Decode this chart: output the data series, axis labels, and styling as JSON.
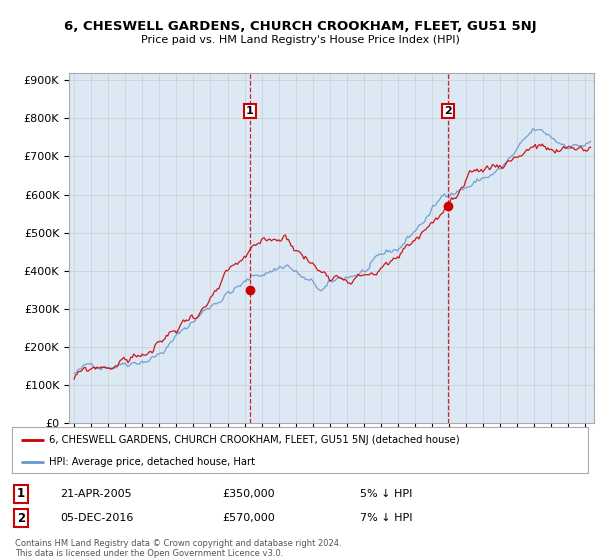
{
  "title": "6, CHESWELL GARDENS, CHURCH CROOKHAM, FLEET, GU51 5NJ",
  "subtitle": "Price paid vs. HM Land Registry's House Price Index (HPI)",
  "ylabel_ticks": [
    "£0",
    "£100K",
    "£200K",
    "£300K",
    "£400K",
    "£500K",
    "£600K",
    "£700K",
    "£800K",
    "£900K"
  ],
  "ytick_values": [
    0,
    100000,
    200000,
    300000,
    400000,
    500000,
    600000,
    700000,
    800000,
    900000
  ],
  "ylim": [
    0,
    920000
  ],
  "xlim_start": 1994.7,
  "xlim_end": 2025.5,
  "xtick_years": [
    1995,
    1996,
    1997,
    1998,
    1999,
    2000,
    2001,
    2002,
    2003,
    2004,
    2005,
    2006,
    2007,
    2008,
    2009,
    2010,
    2011,
    2012,
    2013,
    2014,
    2015,
    2016,
    2017,
    2018,
    2019,
    2020,
    2021,
    2022,
    2023,
    2024,
    2025
  ],
  "line1_color": "#cc0000",
  "line2_color": "#6699cc",
  "marker_color": "#cc0000",
  "vline_color": "#cc0000",
  "sale1_year": 2005.3,
  "sale1_price": 350000,
  "sale2_year": 2016.92,
  "sale2_price": 570000,
  "label1_price": 820000,
  "label2_price": 820000,
  "legend_line1": "6, CHESWELL GARDENS, CHURCH CROOKHAM, FLEET, GU51 5NJ (detached house)",
  "legend_line2": "HPI: Average price, detached house, Hart",
  "table_row1": [
    "1",
    "21-APR-2005",
    "£350,000",
    "5% ↓ HPI"
  ],
  "table_row2": [
    "2",
    "05-DEC-2016",
    "£570,000",
    "7% ↓ HPI"
  ],
  "footer": "Contains HM Land Registry data © Crown copyright and database right 2024.\nThis data is licensed under the Open Government Licence v3.0.",
  "bg_color": "#ffffff",
  "grid_color": "#cccccc",
  "background_plot": "#dde8f5"
}
